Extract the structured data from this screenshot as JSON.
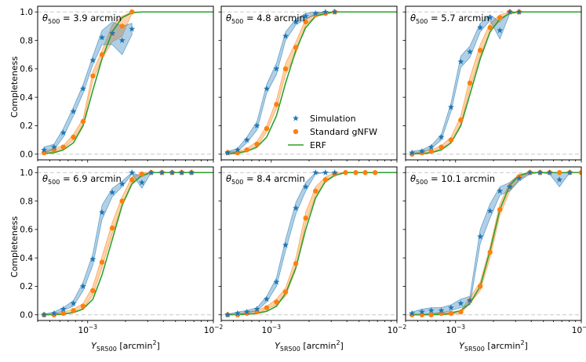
{
  "figure": {
    "ylabel": "Completeness",
    "xlabel_main": "Y",
    "xlabel_sub": "5R500",
    "xlabel_unit": " [arcmin",
    "xlabel_sup": "2",
    "xlabel_close": "]",
    "xtick_labels": [
      {
        "base": "10",
        "exp": "−3"
      },
      {
        "base": "10",
        "exp": "−2"
      }
    ],
    "ytick_labels": [
      "0.0",
      "0.2",
      "0.4",
      "0.6",
      "0.8",
      "1.0"
    ],
    "legend": [
      {
        "label": "Simulation",
        "marker": "star",
        "color": "#1f77b4"
      },
      {
        "label": "Standard gNFW",
        "marker": "circle",
        "color": "#ff7f0e"
      },
      {
        "label": "ERF",
        "marker": "line",
        "color": "#2ca02c"
      }
    ],
    "colors": {
      "simulation": "#1f77b4",
      "gnfw": "#ff7f0e",
      "erf": "#2ca02c",
      "reference_lines": "#c8c8c8"
    }
  },
  "chart_data": [
    {
      "type": "line",
      "panel_label": {
        "theta": "θ",
        "sub": "500",
        "rest": " = 3.9 arcmin"
      },
      "xscale": "log",
      "xlim": [
        0.0004,
        0.01
      ],
      "ylim": [
        -0.04,
        1.04
      ],
      "series": [
        {
          "name": "Simulation",
          "marker": "star",
          "x": [
            0.00045,
            0.00054,
            0.00064,
            0.00077,
            0.00092,
            0.0011,
            0.0013,
            0.00157,
            0.00188,
            0.00225
          ],
          "y": [
            0.03,
            0.05,
            0.15,
            0.3,
            0.46,
            0.66,
            0.82,
            0.85,
            0.8,
            0.88
          ],
          "band": [
            0.02,
            0.02,
            0.03,
            0.03,
            0.03,
            0.03,
            0.05,
            0.08,
            0.1,
            0.04
          ]
        },
        {
          "name": "Standard gNFW",
          "marker": "circle",
          "x": [
            0.00045,
            0.00054,
            0.00064,
            0.00077,
            0.00092,
            0.0011,
            0.0013,
            0.00157,
            0.00188,
            0.00225
          ],
          "y": [
            0.01,
            0.03,
            0.05,
            0.12,
            0.23,
            0.55,
            0.7,
            0.85,
            0.9,
            1.0
          ],
          "band": [
            0.01,
            0.01,
            0.01,
            0.02,
            0.02,
            0.03,
            0.03,
            0.06,
            0.07,
            0.01
          ]
        },
        {
          "name": "ERF",
          "marker": "line",
          "x": [
            0.00045,
            0.00054,
            0.00064,
            0.00077,
            0.00092,
            0.0011,
            0.0013,
            0.00157,
            0.00188,
            0.00225,
            0.0027,
            0.01
          ],
          "y": [
            0.005,
            0.01,
            0.03,
            0.08,
            0.2,
            0.45,
            0.67,
            0.86,
            0.96,
            0.995,
            1.0,
            1.0
          ]
        }
      ]
    },
    {
      "type": "line",
      "panel_label": {
        "theta": "θ",
        "sub": "500",
        "rest": " = 4.8 arcmin"
      },
      "xscale": "log",
      "xlim": [
        0.0004,
        0.01
      ],
      "ylim": [
        -0.04,
        1.04
      ],
      "series": [
        {
          "name": "Simulation",
          "marker": "star",
          "x": [
            0.00045,
            0.00054,
            0.00064,
            0.00077,
            0.00092,
            0.0011,
            0.0013,
            0.00157,
            0.00188,
            0.00225,
            0.0027,
            0.0032
          ],
          "y": [
            0.01,
            0.03,
            0.1,
            0.2,
            0.46,
            0.6,
            0.83,
            0.93,
            0.97,
            0.99,
            1.0,
            1.0
          ],
          "band": [
            0.01,
            0.01,
            0.02,
            0.03,
            0.03,
            0.04,
            0.03,
            0.02,
            0.02,
            0.01,
            0.0,
            0.0
          ]
        },
        {
          "name": "Standard gNFW",
          "marker": "circle",
          "x": [
            0.00045,
            0.00054,
            0.00064,
            0.00077,
            0.00092,
            0.0011,
            0.0013,
            0.00157,
            0.00188,
            0.00225,
            0.0027,
            0.0032
          ],
          "y": [
            0.01,
            0.01,
            0.03,
            0.07,
            0.18,
            0.35,
            0.6,
            0.75,
            0.93,
            0.98,
            0.99,
            1.0
          ],
          "band": [
            0.01,
            0.01,
            0.01,
            0.02,
            0.02,
            0.03,
            0.04,
            0.04,
            0.02,
            0.01,
            0.01,
            0.0
          ]
        },
        {
          "name": "ERF",
          "marker": "line",
          "x": [
            0.00045,
            0.00054,
            0.00064,
            0.00077,
            0.00092,
            0.0011,
            0.0013,
            0.00157,
            0.00188,
            0.00225,
            0.0027,
            0.0032,
            0.01
          ],
          "y": [
            0.003,
            0.01,
            0.02,
            0.05,
            0.12,
            0.27,
            0.5,
            0.73,
            0.89,
            0.97,
            0.99,
            1.0,
            1.0
          ]
        }
      ]
    },
    {
      "type": "line",
      "panel_label": {
        "theta": "θ",
        "sub": "500",
        "rest": " = 5.7 arcmin"
      },
      "xscale": "log",
      "xlim": [
        0.0004,
        0.01
      ],
      "ylim": [
        -0.04,
        1.04
      ],
      "series": [
        {
          "name": "Simulation",
          "marker": "star",
          "x": [
            0.00045,
            0.00054,
            0.00064,
            0.00077,
            0.00092,
            0.0011,
            0.0013,
            0.00157,
            0.00188,
            0.00225,
            0.0027,
            0.0032
          ],
          "y": [
            0.01,
            0.02,
            0.05,
            0.12,
            0.33,
            0.65,
            0.72,
            0.89,
            0.96,
            0.87,
            1.0,
            1.0
          ],
          "band": [
            0.01,
            0.01,
            0.01,
            0.02,
            0.03,
            0.04,
            0.04,
            0.03,
            0.02,
            0.06,
            0.01,
            0.0
          ]
        },
        {
          "name": "Standard gNFW",
          "marker": "circle",
          "x": [
            0.00045,
            0.00054,
            0.00064,
            0.00077,
            0.00092,
            0.0011,
            0.0013,
            0.00157,
            0.00188,
            0.00225,
            0.0027,
            0.0032
          ],
          "y": [
            0.0,
            0.01,
            0.02,
            0.05,
            0.1,
            0.24,
            0.5,
            0.73,
            0.89,
            0.96,
            1.0,
            1.0
          ],
          "band": [
            0.005,
            0.01,
            0.01,
            0.01,
            0.02,
            0.03,
            0.04,
            0.04,
            0.03,
            0.02,
            0.0,
            0.0
          ]
        },
        {
          "name": "ERF",
          "marker": "line",
          "x": [
            0.00045,
            0.00054,
            0.00064,
            0.00077,
            0.00092,
            0.0011,
            0.0013,
            0.00157,
            0.00188,
            0.00225,
            0.0027,
            0.0032,
            0.01
          ],
          "y": [
            0.002,
            0.005,
            0.01,
            0.03,
            0.08,
            0.2,
            0.42,
            0.67,
            0.86,
            0.95,
            0.99,
            1.0,
            1.0
          ]
        }
      ]
    },
    {
      "type": "line",
      "panel_label": {
        "theta": "θ",
        "sub": "500",
        "rest": " = 6.9 arcmin"
      },
      "xscale": "log",
      "xlim": [
        0.0004,
        0.01
      ],
      "ylim": [
        -0.04,
        1.04
      ],
      "series": [
        {
          "name": "Simulation",
          "marker": "star",
          "x": [
            0.00045,
            0.00054,
            0.00064,
            0.00077,
            0.00092,
            0.0011,
            0.0013,
            0.00157,
            0.00188,
            0.00225,
            0.0027,
            0.0032,
            0.0039,
            0.0047,
            0.0056,
            0.0067
          ],
          "y": [
            0.0,
            0.01,
            0.04,
            0.08,
            0.2,
            0.39,
            0.72,
            0.86,
            0.92,
            1.0,
            0.93,
            1.0,
            1.0,
            1.0,
            1.0,
            1.0
          ],
          "band": [
            0.005,
            0.01,
            0.01,
            0.02,
            0.03,
            0.04,
            0.05,
            0.03,
            0.02,
            0.01,
            0.04,
            0.0,
            0.0,
            0.0,
            0.0,
            0.0
          ]
        },
        {
          "name": "Standard gNFW",
          "marker": "circle",
          "x": [
            0.00045,
            0.00054,
            0.00064,
            0.00077,
            0.00092,
            0.0011,
            0.0013,
            0.00157,
            0.00188,
            0.00225,
            0.0027,
            0.0032,
            0.0039,
            0.0047,
            0.0056,
            0.0067
          ],
          "y": [
            0.0,
            0.0,
            0.01,
            0.03,
            0.06,
            0.17,
            0.37,
            0.61,
            0.8,
            0.95,
            0.99,
            1.0,
            1.0,
            1.0,
            1.0,
            1.0
          ],
          "band": [
            0.005,
            0.005,
            0.01,
            0.01,
            0.02,
            0.03,
            0.04,
            0.04,
            0.03,
            0.02,
            0.01,
            0.0,
            0.0,
            0.0,
            0.0,
            0.0
          ]
        },
        {
          "name": "ERF",
          "marker": "line",
          "x": [
            0.00045,
            0.00054,
            0.00064,
            0.00077,
            0.00092,
            0.0011,
            0.0013,
            0.00157,
            0.00188,
            0.00225,
            0.0027,
            0.0032,
            0.01
          ],
          "y": [
            0.0,
            0.002,
            0.005,
            0.015,
            0.04,
            0.11,
            0.28,
            0.53,
            0.77,
            0.92,
            0.98,
            1.0,
            1.0
          ]
        }
      ]
    },
    {
      "type": "line",
      "panel_label": {
        "theta": "θ",
        "sub": "500",
        "rest": " = 8.4 arcmin"
      },
      "xscale": "log",
      "xlim": [
        0.0004,
        0.01
      ],
      "ylim": [
        -0.04,
        1.04
      ],
      "series": [
        {
          "name": "Simulation",
          "marker": "star",
          "x": [
            0.00045,
            0.00054,
            0.00064,
            0.00077,
            0.00092,
            0.0011,
            0.0013,
            0.00157,
            0.00188,
            0.00225,
            0.0027,
            0.0032
          ],
          "y": [
            0.0,
            0.01,
            0.02,
            0.04,
            0.11,
            0.23,
            0.49,
            0.75,
            0.9,
            1.0,
            1.0,
            1.0
          ],
          "band": [
            0.005,
            0.01,
            0.01,
            0.01,
            0.02,
            0.03,
            0.04,
            0.04,
            0.03,
            0.01,
            0.0,
            0.0
          ]
        },
        {
          "name": "Standard gNFW",
          "marker": "circle",
          "x": [
            0.00045,
            0.00054,
            0.00064,
            0.00077,
            0.00092,
            0.0011,
            0.0013,
            0.00157,
            0.00188,
            0.00225,
            0.0027,
            0.0032,
            0.0039,
            0.0047,
            0.0056,
            0.0067
          ],
          "y": [
            0.0,
            0.0,
            0.01,
            0.02,
            0.05,
            0.09,
            0.16,
            0.36,
            0.68,
            0.87,
            0.95,
            0.99,
            1.0,
            1.0,
            1.0,
            1.0
          ],
          "band": [
            0.005,
            0.005,
            0.01,
            0.01,
            0.01,
            0.02,
            0.03,
            0.04,
            0.04,
            0.03,
            0.02,
            0.01,
            0.0,
            0.0,
            0.0,
            0.0
          ]
        },
        {
          "name": "ERF",
          "marker": "line",
          "x": [
            0.00045,
            0.00054,
            0.00064,
            0.00077,
            0.00092,
            0.0011,
            0.0013,
            0.00157,
            0.00188,
            0.00225,
            0.0027,
            0.0032,
            0.0039,
            0.01
          ],
          "y": [
            0.0,
            0.002,
            0.004,
            0.01,
            0.025,
            0.06,
            0.15,
            0.33,
            0.6,
            0.82,
            0.94,
            0.98,
            1.0,
            1.0
          ]
        }
      ]
    },
    {
      "type": "line",
      "panel_label": {
        "theta": "θ",
        "sub": "500",
        "rest": " = 10.1 arcmin"
      },
      "xscale": "log",
      "xlim": [
        0.0004,
        0.01
      ],
      "ylim": [
        -0.04,
        1.04
      ],
      "series": [
        {
          "name": "Simulation",
          "marker": "star",
          "x": [
            0.00045,
            0.00054,
            0.00064,
            0.00077,
            0.00092,
            0.0011,
            0.0013,
            0.00157,
            0.00188,
            0.00225,
            0.0027,
            0.0032,
            0.0039,
            0.0047,
            0.0056,
            0.0067,
            0.0081
          ],
          "y": [
            0.01,
            0.02,
            0.03,
            0.03,
            0.05,
            0.08,
            0.1,
            0.55,
            0.73,
            0.87,
            0.9,
            0.96,
            1.0,
            1.0,
            1.0,
            0.95,
            1.0
          ],
          "band": [
            0.01,
            0.02,
            0.02,
            0.02,
            0.02,
            0.03,
            0.03,
            0.05,
            0.05,
            0.03,
            0.03,
            0.02,
            0.01,
            0.0,
            0.01,
            0.05,
            0.0
          ]
        },
        {
          "name": "Standard gNFW",
          "marker": "circle",
          "x": [
            0.00045,
            0.00054,
            0.00064,
            0.00077,
            0.00092,
            0.0011,
            0.0013,
            0.00157,
            0.00188,
            0.00225,
            0.0027,
            0.0032,
            0.0039,
            0.0047,
            0.0056,
            0.0067,
            0.0081,
            0.01
          ],
          "y": [
            0.0,
            0.0,
            0.0,
            0.01,
            0.01,
            0.02,
            0.1,
            0.2,
            0.44,
            0.74,
            0.9,
            0.97,
            1.0,
            1.0,
            1.0,
            1.0,
            1.0,
            1.0
          ],
          "band": [
            0.005,
            0.005,
            0.005,
            0.01,
            0.01,
            0.01,
            0.02,
            0.03,
            0.04,
            0.04,
            0.03,
            0.02,
            0.0,
            0.0,
            0.0,
            0.0,
            0.0,
            0.0
          ]
        },
        {
          "name": "ERF",
          "marker": "line",
          "x": [
            0.00045,
            0.00054,
            0.00064,
            0.00077,
            0.00092,
            0.0011,
            0.0013,
            0.00157,
            0.00188,
            0.00225,
            0.0027,
            0.0032,
            0.0039,
            0.01
          ],
          "y": [
            0.0,
            0.0,
            0.001,
            0.003,
            0.01,
            0.03,
            0.08,
            0.2,
            0.45,
            0.74,
            0.91,
            0.98,
            1.0,
            1.0
          ]
        }
      ]
    }
  ]
}
